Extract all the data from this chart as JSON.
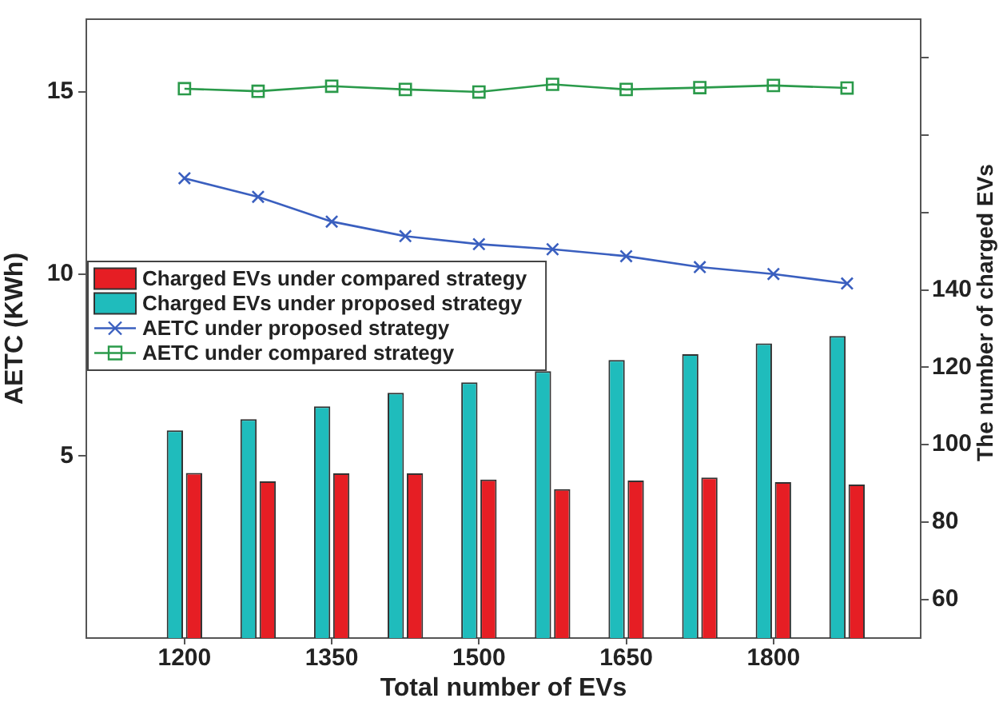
{
  "chart_data": {
    "type": "bar",
    "xlabel": "Total number of EVs",
    "ylabel": "AETC (KWh)",
    "y2label": "The number of charged EVs",
    "x": [
      1200,
      1275,
      1350,
      1425,
      1500,
      1575,
      1650,
      1725,
      1800,
      1875
    ],
    "xlim": [
      1100,
      1950
    ],
    "xticks": [
      1200,
      1350,
      1500,
      1650,
      1800
    ],
    "ylim": [
      0,
      17
    ],
    "yticks": [
      5,
      10,
      15
    ],
    "y2lim": [
      50,
      210
    ],
    "y2ticks": [
      60,
      80,
      100,
      120,
      140,
      {
        "value": 160,
        "label": null
      },
      {
        "value": 180,
        "label": null
      },
      {
        "value": 200,
        "label": null
      }
    ],
    "grid": false,
    "legend": "left",
    "series": [
      {
        "name": "Charged EVs under compared strategy",
        "axis": "y2",
        "color": "#e61e24",
        "values": [
          92.7,
          90.5,
          92.6,
          92.6,
          91,
          88.5,
          90.7,
          91.5,
          90.3,
          89.7
        ]
      },
      {
        "name": "Charged EVs under proposed strategy",
        "axis": "y2",
        "color": "#1fbcbc",
        "values": [
          103.7,
          106.6,
          109.9,
          113.4,
          116.1,
          119,
          121.9,
          123.4,
          126.2,
          128.1
        ]
      },
      {
        "name": "AETC under proposed strategy",
        "type": "line",
        "color": "#3a5fbf",
        "marker": "cross",
        "values": [
          12.63,
          12.12,
          11.44,
          11.04,
          10.82,
          10.68,
          10.49,
          10.19,
          10.0,
          9.74
        ]
      },
      {
        "name": "AETC under compared strategy",
        "type": "line",
        "color": "#2a9a4a",
        "marker": "square",
        "values": [
          15.09,
          15.02,
          15.16,
          15.07,
          15.0,
          15.21,
          15.07,
          15.12,
          15.18,
          15.11
        ]
      }
    ]
  }
}
